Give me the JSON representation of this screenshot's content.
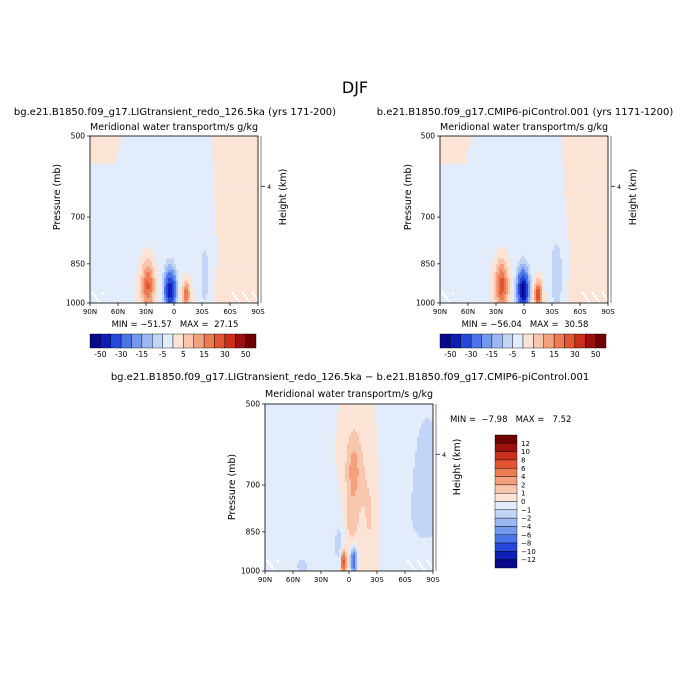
{
  "page": {
    "season": "DJF",
    "diff_title": "bg.e21.B1850.f09_g17.LIGtransient_redo_126.5ka − b.e21.B1850.f09_g17.CMIP6-piControl.001"
  },
  "chart_data": [
    {
      "type": "heatmap",
      "id": "left",
      "run_title": "bg.e21.B1850.f09_g17.LIGtransient_redo_126.5ka (yrs 171-200)",
      "title": "Meridional water transport",
      "units": "m/s g/kg",
      "xlabel": "",
      "ylabel": "Pressure (mb)",
      "ylabel_right": "Height (km)",
      "x_ticks": [
        "90N",
        "60N",
        "30N",
        "0",
        "30S",
        "60S",
        "90S"
      ],
      "y_ticks": [
        "500",
        "700",
        "850",
        "1000"
      ],
      "right_ticks": [
        "4"
      ],
      "ylim": [
        1000,
        500
      ],
      "stats": "MIN = −51.57   MAX =  27.15",
      "min": -51.57,
      "max": 27.15,
      "levels": [
        "-50",
        "-30",
        "-15",
        "-5",
        "5",
        "15",
        "30",
        "50"
      ],
      "colorbar": [
        "#08088a",
        "#0f1fb6",
        "#2548d8",
        "#4a75e8",
        "#7399ee",
        "#9cb8f2",
        "#c3d5f6",
        "#e2ecfa",
        "#fbe4d6",
        "#f8c6ac",
        "#f4a07e",
        "#ee7a54",
        "#e25432",
        "#c8301c",
        "#9c1010",
        "#6e0000"
      ],
      "features": [
        {
          "lat": -80,
          "p": 620,
          "v": 2,
          "sx": 50,
          "sp": 250
        },
        {
          "lat": 10,
          "p": 660,
          "v": -3,
          "sx": 55,
          "sp": 250
        },
        {
          "lat": 28,
          "p": 930,
          "v": 22,
          "sx": 7,
          "sp": 90
        },
        {
          "lat": 4,
          "p": 950,
          "v": -48,
          "sx": 6,
          "sp": 75
        },
        {
          "lat": -13,
          "p": 965,
          "v": 20,
          "sx": 4,
          "sp": 50
        },
        {
          "lat": -33,
          "p": 900,
          "v": -7,
          "sx": 6,
          "sp": 140
        },
        {
          "lat": -50,
          "p": 960,
          "v": 3,
          "sx": 5,
          "sp": 60
        }
      ]
    },
    {
      "type": "heatmap",
      "id": "right",
      "run_title": "b.e21.B1850.f09_g17.CMIP6-piControl.001 (yrs 1171-1200)",
      "title": "Meridional water transport",
      "units": "m/s g/kg",
      "xlabel": "",
      "ylabel": "Pressure (mb)",
      "ylabel_right": "Height (km)",
      "x_ticks": [
        "90N",
        "60N",
        "30N",
        "0",
        "30S",
        "60S",
        "90S"
      ],
      "y_ticks": [
        "500",
        "700",
        "850",
        "1000"
      ],
      "right_ticks": [
        "4"
      ],
      "ylim": [
        1000,
        500
      ],
      "stats": "MIN = −56.04   MAX =  30.58",
      "min": -56.04,
      "max": 30.58,
      "levels": [
        "-50",
        "-30",
        "-15",
        "-5",
        "5",
        "15",
        "30",
        "50"
      ],
      "colorbar": [
        "#08088a",
        "#0f1fb6",
        "#2548d8",
        "#4a75e8",
        "#7399ee",
        "#9cb8f2",
        "#c3d5f6",
        "#e2ecfa",
        "#fbe4d6",
        "#f8c6ac",
        "#f4a07e",
        "#ee7a54",
        "#e25432",
        "#c8301c",
        "#9c1010",
        "#6e0000"
      ],
      "features": [
        {
          "lat": -80,
          "p": 620,
          "v": 2,
          "sx": 50,
          "sp": 250
        },
        {
          "lat": 10,
          "p": 660,
          "v": -3,
          "sx": 55,
          "sp": 250
        },
        {
          "lat": 24,
          "p": 930,
          "v": 24,
          "sx": 7,
          "sp": 90
        },
        {
          "lat": 1,
          "p": 950,
          "v": -54,
          "sx": 6,
          "sp": 75
        },
        {
          "lat": -15,
          "p": 965,
          "v": 28,
          "sx": 4,
          "sp": 50
        },
        {
          "lat": -35,
          "p": 900,
          "v": -9,
          "sx": 7,
          "sp": 140
        },
        {
          "lat": -55,
          "p": 960,
          "v": 3,
          "sx": 5,
          "sp": 60
        }
      ]
    },
    {
      "type": "heatmap",
      "id": "diff",
      "title": "Meridional water transport",
      "units": "m/s g/kg",
      "xlabel": "",
      "ylabel": "Pressure (mb)",
      "ylabel_right": "Height (km)",
      "x_ticks": [
        "90N",
        "60N",
        "30N",
        "0",
        "30S",
        "60S",
        "90S"
      ],
      "y_ticks": [
        "500",
        "700",
        "850",
        "1000"
      ],
      "right_ticks": [
        "4"
      ],
      "ylim": [
        1000,
        500
      ],
      "stats": "MIN =  −7.98   MAX =   7.52",
      "min": -7.98,
      "max": 7.52,
      "levels": [
        "12",
        "10",
        "8",
        "6",
        "4",
        "2",
        "1",
        "0",
        "−1",
        "−2",
        "−4",
        "−6",
        "−8",
        "−10",
        "−12"
      ],
      "colorbar": [
        "#6e0000",
        "#9c1010",
        "#c8301c",
        "#e25432",
        "#ee7a54",
        "#f4a07e",
        "#f8c6ac",
        "#fbe4d6",
        "#e2ecfa",
        "#c3d5f6",
        "#9cb8f2",
        "#7399ee",
        "#4a75e8",
        "#2548d8",
        "#0f1fb6",
        "#08088a"
      ],
      "features": [
        {
          "lat": -80,
          "p": 700,
          "v": -1.4,
          "sx": 45,
          "sp": 300
        },
        {
          "lat": -5,
          "p": 660,
          "v": 2.5,
          "sx": 9,
          "sp": 110
        },
        {
          "lat": -2,
          "p": 820,
          "v": 1.6,
          "sx": 8,
          "sp": 80
        },
        {
          "lat": 10,
          "p": 900,
          "v": -1.4,
          "sx": 8,
          "sp": 120
        },
        {
          "lat": 6,
          "p": 965,
          "v": 7.5,
          "sx": 3,
          "sp": 45
        },
        {
          "lat": -5,
          "p": 960,
          "v": -8,
          "sx": 3,
          "sp": 45
        },
        {
          "lat": -22,
          "p": 780,
          "v": 1.3,
          "sx": 10,
          "sp": 220
        },
        {
          "lat": -55,
          "p": 620,
          "v": 0.8,
          "sx": 15,
          "sp": 180
        },
        {
          "lat": 50,
          "p": 980,
          "v": -1.5,
          "sx": 8,
          "sp": 40
        }
      ]
    }
  ]
}
